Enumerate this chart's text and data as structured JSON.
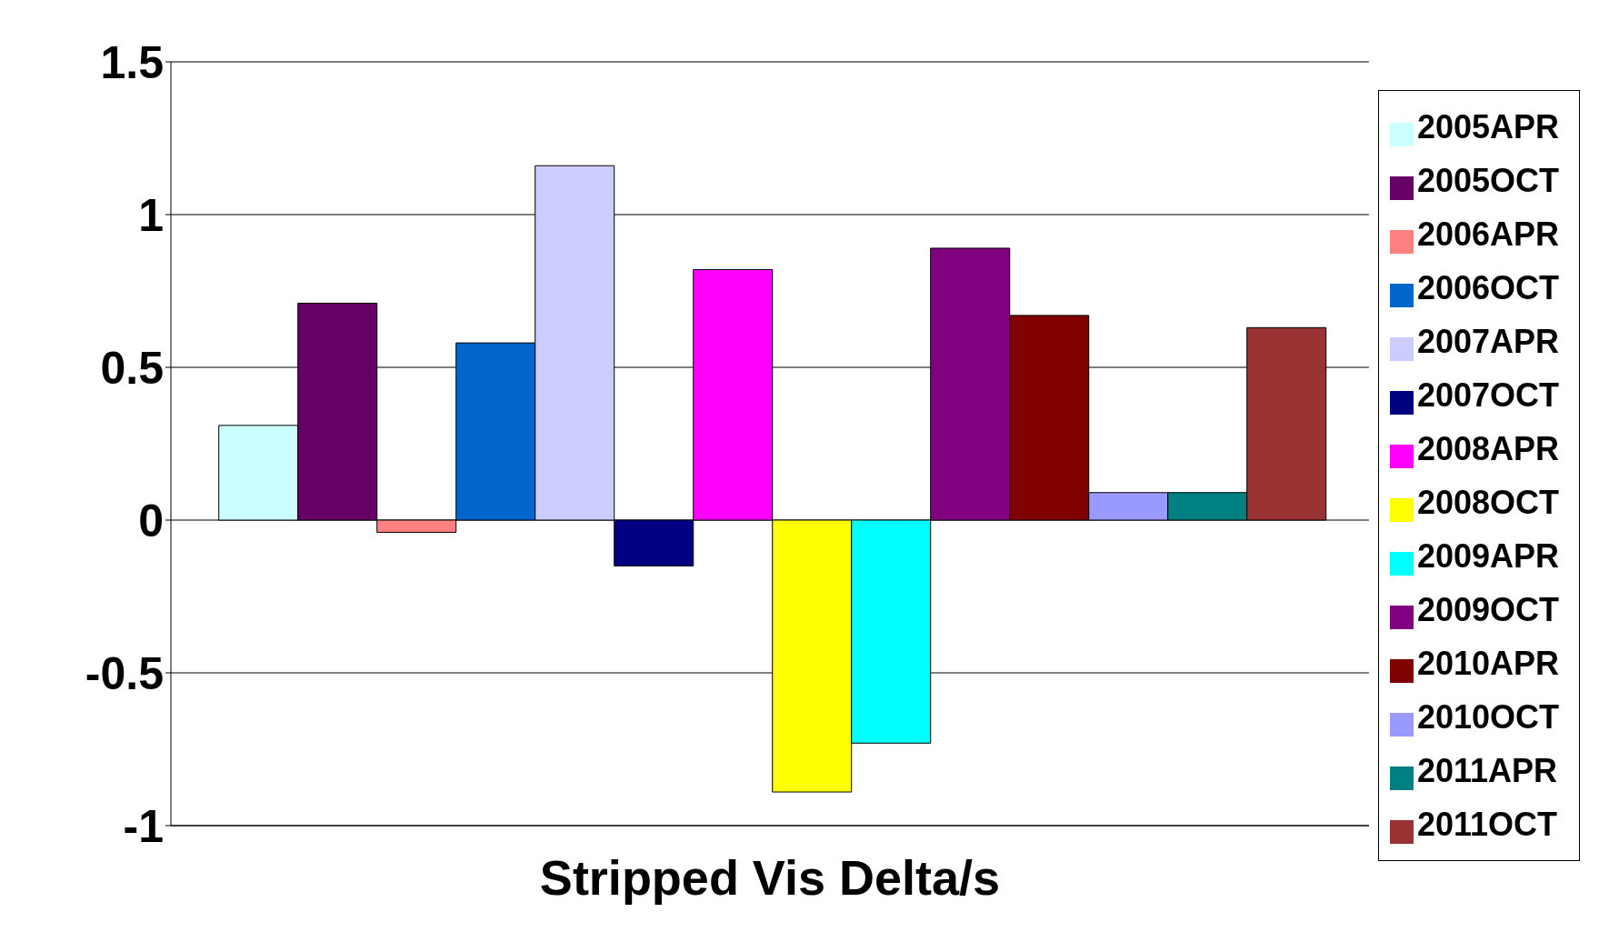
{
  "chart_data": {
    "type": "bar",
    "categories": [
      "Stripped Vis Delta/s"
    ],
    "series": [
      {
        "name": "2005APR",
        "color": "#ccffff",
        "values": [
          0.31
        ]
      },
      {
        "name": "2005OCT",
        "color": "#660066",
        "values": [
          0.71
        ]
      },
      {
        "name": "2006APR",
        "color": "#ff8080",
        "values": [
          -0.04
        ]
      },
      {
        "name": "2006OCT",
        "color": "#0066cc",
        "values": [
          0.58
        ]
      },
      {
        "name": "2007APR",
        "color": "#ccccff",
        "values": [
          1.16
        ]
      },
      {
        "name": "2007OCT",
        "color": "#000080",
        "values": [
          -0.15
        ]
      },
      {
        "name": "2008APR",
        "color": "#ff00ff",
        "values": [
          0.82
        ]
      },
      {
        "name": "2008OCT",
        "color": "#ffff00",
        "values": [
          -0.89
        ]
      },
      {
        "name": "2009APR",
        "color": "#00ffff",
        "values": [
          -0.73
        ]
      },
      {
        "name": "2009OCT",
        "color": "#800080",
        "values": [
          0.89
        ]
      },
      {
        "name": "2010APR",
        "color": "#800000",
        "values": [
          0.67
        ]
      },
      {
        "name": "2010OCT",
        "color": "#9999ff",
        "values": [
          0.09
        ]
      },
      {
        "name": "2011APR",
        "color": "#008080",
        "values": [
          0.09
        ]
      },
      {
        "name": "2011OCT",
        "color": "#993333",
        "values": [
          0.63
        ]
      }
    ],
    "ylim": [
      -1,
      1.5
    ],
    "yticks": [
      -1,
      -0.5,
      0,
      0.5,
      1,
      1.5
    ],
    "grid": "y",
    "legend": "right"
  }
}
